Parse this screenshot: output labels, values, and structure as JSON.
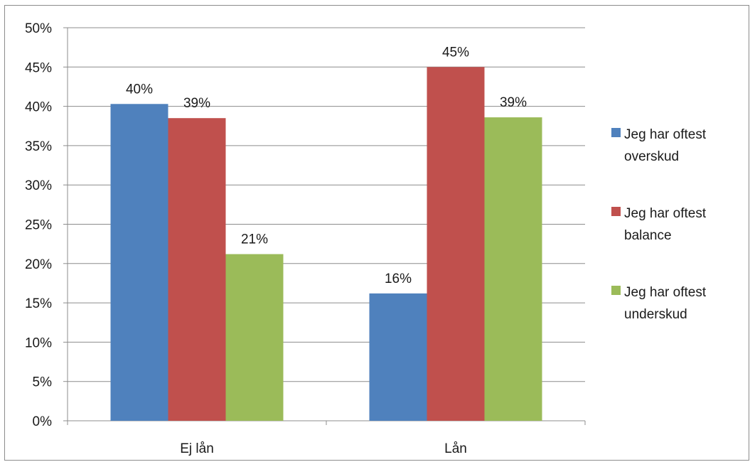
{
  "chart_data": {
    "type": "bar",
    "title": "",
    "xlabel": "",
    "ylabel": "",
    "ylim": [
      0,
      50
    ],
    "yticks": [
      "0%",
      "5%",
      "10%",
      "15%",
      "20%",
      "25%",
      "30%",
      "35%",
      "40%",
      "45%",
      "50%"
    ],
    "ytick_values": [
      0,
      5,
      10,
      15,
      20,
      25,
      30,
      35,
      40,
      45,
      50
    ],
    "grid": true,
    "legend_position": "right",
    "categories": [
      "Ej lån",
      "Lån"
    ],
    "series": [
      {
        "name": "Jeg har oftest overskud",
        "legend_lines": [
          "Jeg har oftest",
          "overskud"
        ],
        "color": "#4f81bd",
        "values": [
          40.3,
          16.2
        ],
        "labels": [
          "40%",
          "16%"
        ]
      },
      {
        "name": "Jeg har oftest balance",
        "legend_lines": [
          "Jeg har oftest",
          "balance"
        ],
        "color": "#c0504d",
        "values": [
          38.5,
          45.0
        ],
        "labels": [
          "39%",
          "45%"
        ]
      },
      {
        "name": "Jeg har oftest underskud",
        "legend_lines": [
          "Jeg har oftest",
          "underskud"
        ],
        "color": "#9bbb59",
        "values": [
          21.2,
          38.6
        ],
        "labels": [
          "21%",
          "39%"
        ]
      }
    ]
  }
}
